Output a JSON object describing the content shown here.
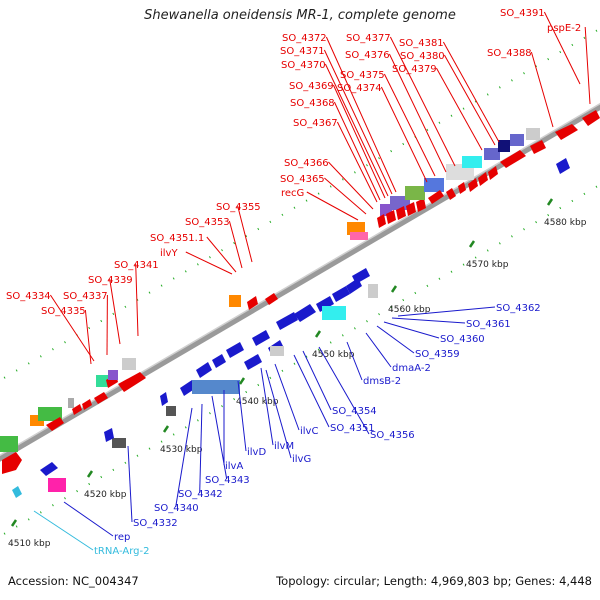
{
  "title": "Shewanella oneidensis MR-1, complete genome",
  "footer": {
    "accession": "Accession: NC_004347",
    "summary": "Topology: circular; Length: 4,969,803 bp; Genes: 4,448"
  },
  "colors": {
    "forward_label": "#e60000",
    "reverse_label": "#1a1acc",
    "trna_label": "#33bbdd",
    "backbone": "#999999",
    "tick": "#228822"
  },
  "scale": {
    "unit": "kbp",
    "ticks": [
      {
        "label": "4510 kbp"
      },
      {
        "label": "4520 kbp"
      },
      {
        "label": "4530 kbp"
      },
      {
        "label": "4540 kbp"
      },
      {
        "label": "4550 kbp"
      },
      {
        "label": "4560 kbp"
      },
      {
        "label": "4570 kbp"
      },
      {
        "label": "4580 kbp"
      }
    ]
  },
  "forward_labels": [
    "SO_4391",
    "pspE-2",
    "SO_4388",
    "SO_4372",
    "SO_4371",
    "SO_4370",
    "SO_4369",
    "SO_4368",
    "SO_4367",
    "SO_4377",
    "SO_4376",
    "SO_4375",
    "SO_4374",
    "SO_4381",
    "SO_4380",
    "SO_4379",
    "SO_4366",
    "SO_4365",
    "recG",
    "SO_4355",
    "SO_4353",
    "SO_4351.1",
    "ilvY",
    "SO_4341",
    "SO_4339",
    "SO_4337",
    "SO_4334",
    "SO_4335"
  ],
  "reverse_labels": [
    "SO_4362",
    "SO_4361",
    "SO_4360",
    "SO_4359",
    "dmaA-2",
    "dmsB-2",
    "SO_4354",
    "SO_4351",
    "SO_4356",
    "ilvC",
    "ilvM",
    "ilvG",
    "ilvD",
    "ilvA",
    "SO_4343",
    "SO_4342",
    "SO_4340",
    "SO_4332",
    "rep"
  ],
  "trna_labels": [
    "tRNA-Arg-2"
  ]
}
